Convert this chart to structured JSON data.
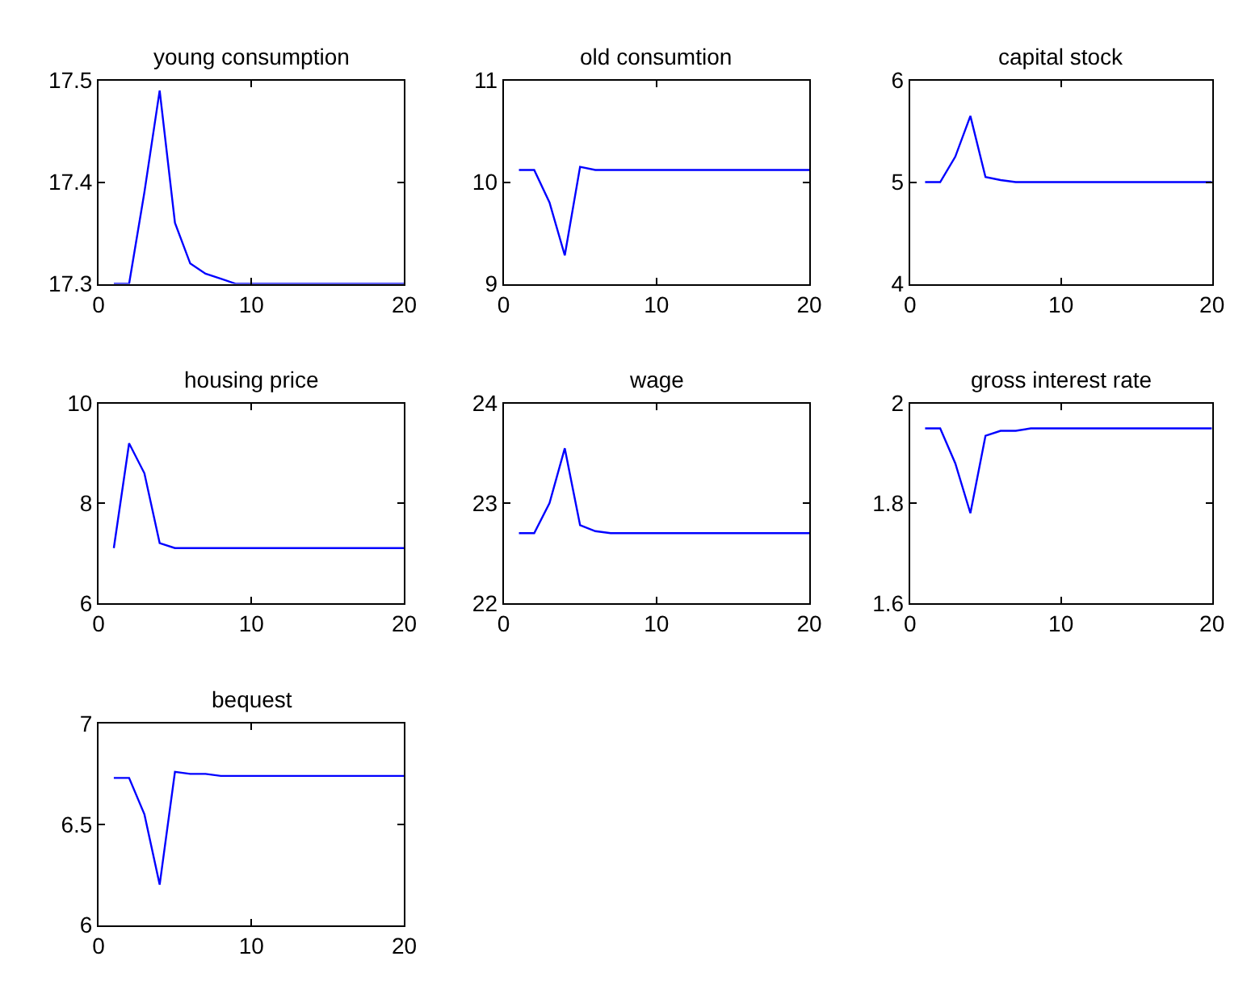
{
  "chart_data": [
    {
      "type": "line",
      "title": "young consumption",
      "x": [
        1,
        2,
        3,
        4,
        5,
        6,
        7,
        8,
        9,
        10,
        11,
        12,
        13,
        14,
        15,
        16,
        17,
        18,
        19,
        20
      ],
      "series": [
        {
          "color": "#0000ff",
          "values": [
            17.3,
            17.3,
            17.39,
            17.49,
            17.36,
            17.32,
            17.31,
            17.305,
            17.3,
            17.3,
            17.3,
            17.3,
            17.3,
            17.3,
            17.3,
            17.3,
            17.3,
            17.3,
            17.3,
            17.3
          ]
        }
      ],
      "xlim": [
        0,
        20
      ],
      "xticks": [
        0,
        10,
        20
      ],
      "ylim": [
        17.3,
        17.5
      ],
      "yticks": [
        17.3,
        17.4,
        17.5
      ]
    },
    {
      "type": "line",
      "title": "old consumtion",
      "x": [
        1,
        2,
        3,
        4,
        5,
        6,
        7,
        8,
        9,
        10,
        11,
        12,
        13,
        14,
        15,
        16,
        17,
        18,
        19,
        20
      ],
      "series": [
        {
          "color": "#0000ff",
          "values": [
            10.12,
            10.12,
            9.8,
            9.28,
            10.15,
            10.12,
            10.12,
            10.12,
            10.12,
            10.12,
            10.12,
            10.12,
            10.12,
            10.12,
            10.12,
            10.12,
            10.12,
            10.12,
            10.12,
            10.12
          ]
        }
      ],
      "xlim": [
        0,
        20
      ],
      "xticks": [
        0,
        10,
        20
      ],
      "ylim": [
        9,
        11
      ],
      "yticks": [
        9,
        10,
        11
      ]
    },
    {
      "type": "line",
      "title": "capital stock",
      "x": [
        1,
        2,
        3,
        4,
        5,
        6,
        7,
        8,
        9,
        10,
        11,
        12,
        13,
        14,
        15,
        16,
        17,
        18,
        19,
        20
      ],
      "series": [
        {
          "color": "#0000ff",
          "values": [
            5.0,
            5.0,
            5.25,
            5.65,
            5.05,
            5.02,
            5.0,
            5.0,
            5.0,
            5.0,
            5.0,
            5.0,
            5.0,
            5.0,
            5.0,
            5.0,
            5.0,
            5.0,
            5.0,
            5.0
          ]
        }
      ],
      "xlim": [
        0,
        20
      ],
      "xticks": [
        0,
        10,
        20
      ],
      "ylim": [
        4,
        6
      ],
      "yticks": [
        4,
        5,
        6
      ]
    },
    {
      "type": "line",
      "title": "housing price",
      "x": [
        1,
        2,
        3,
        4,
        5,
        6,
        7,
        8,
        9,
        10,
        11,
        12,
        13,
        14,
        15,
        16,
        17,
        18,
        19,
        20
      ],
      "series": [
        {
          "color": "#0000ff",
          "values": [
            7.1,
            9.2,
            8.6,
            7.2,
            7.1,
            7.1,
            7.1,
            7.1,
            7.1,
            7.1,
            7.1,
            7.1,
            7.1,
            7.1,
            7.1,
            7.1,
            7.1,
            7.1,
            7.1,
            7.1
          ]
        }
      ],
      "xlim": [
        0,
        20
      ],
      "xticks": [
        0,
        10,
        20
      ],
      "ylim": [
        6,
        10
      ],
      "yticks": [
        6,
        8,
        10
      ]
    },
    {
      "type": "line",
      "title": "wage",
      "x": [
        1,
        2,
        3,
        4,
        5,
        6,
        7,
        8,
        9,
        10,
        11,
        12,
        13,
        14,
        15,
        16,
        17,
        18,
        19,
        20
      ],
      "series": [
        {
          "color": "#0000ff",
          "values": [
            22.7,
            22.7,
            23.0,
            23.55,
            22.78,
            22.72,
            22.7,
            22.7,
            22.7,
            22.7,
            22.7,
            22.7,
            22.7,
            22.7,
            22.7,
            22.7,
            22.7,
            22.7,
            22.7,
            22.7
          ]
        }
      ],
      "xlim": [
        0,
        20
      ],
      "xticks": [
        0,
        10,
        20
      ],
      "ylim": [
        22,
        24
      ],
      "yticks": [
        22,
        23,
        24
      ]
    },
    {
      "type": "line",
      "title": "gross interest rate",
      "x": [
        1,
        2,
        3,
        4,
        5,
        6,
        7,
        8,
        9,
        10,
        11,
        12,
        13,
        14,
        15,
        16,
        17,
        18,
        19,
        20
      ],
      "series": [
        {
          "color": "#0000ff",
          "values": [
            1.95,
            1.95,
            1.88,
            1.78,
            1.935,
            1.945,
            1.945,
            1.95,
            1.95,
            1.95,
            1.95,
            1.95,
            1.95,
            1.95,
            1.95,
            1.95,
            1.95,
            1.95,
            1.95,
            1.95
          ]
        }
      ],
      "xlim": [
        0,
        20
      ],
      "xticks": [
        0,
        10,
        20
      ],
      "ylim": [
        1.6,
        2
      ],
      "yticks": [
        1.6,
        1.8,
        2
      ]
    },
    {
      "type": "line",
      "title": "bequest",
      "x": [
        1,
        2,
        3,
        4,
        5,
        6,
        7,
        8,
        9,
        10,
        11,
        12,
        13,
        14,
        15,
        16,
        17,
        18,
        19,
        20
      ],
      "series": [
        {
          "color": "#0000ff",
          "values": [
            6.73,
            6.73,
            6.55,
            6.2,
            6.76,
            6.75,
            6.75,
            6.74,
            6.74,
            6.74,
            6.74,
            6.74,
            6.74,
            6.74,
            6.74,
            6.74,
            6.74,
            6.74,
            6.74,
            6.74
          ]
        }
      ],
      "xlim": [
        0,
        20
      ],
      "xticks": [
        0,
        10,
        20
      ],
      "ylim": [
        6,
        7
      ],
      "yticks": [
        6,
        6.5,
        7
      ]
    }
  ]
}
